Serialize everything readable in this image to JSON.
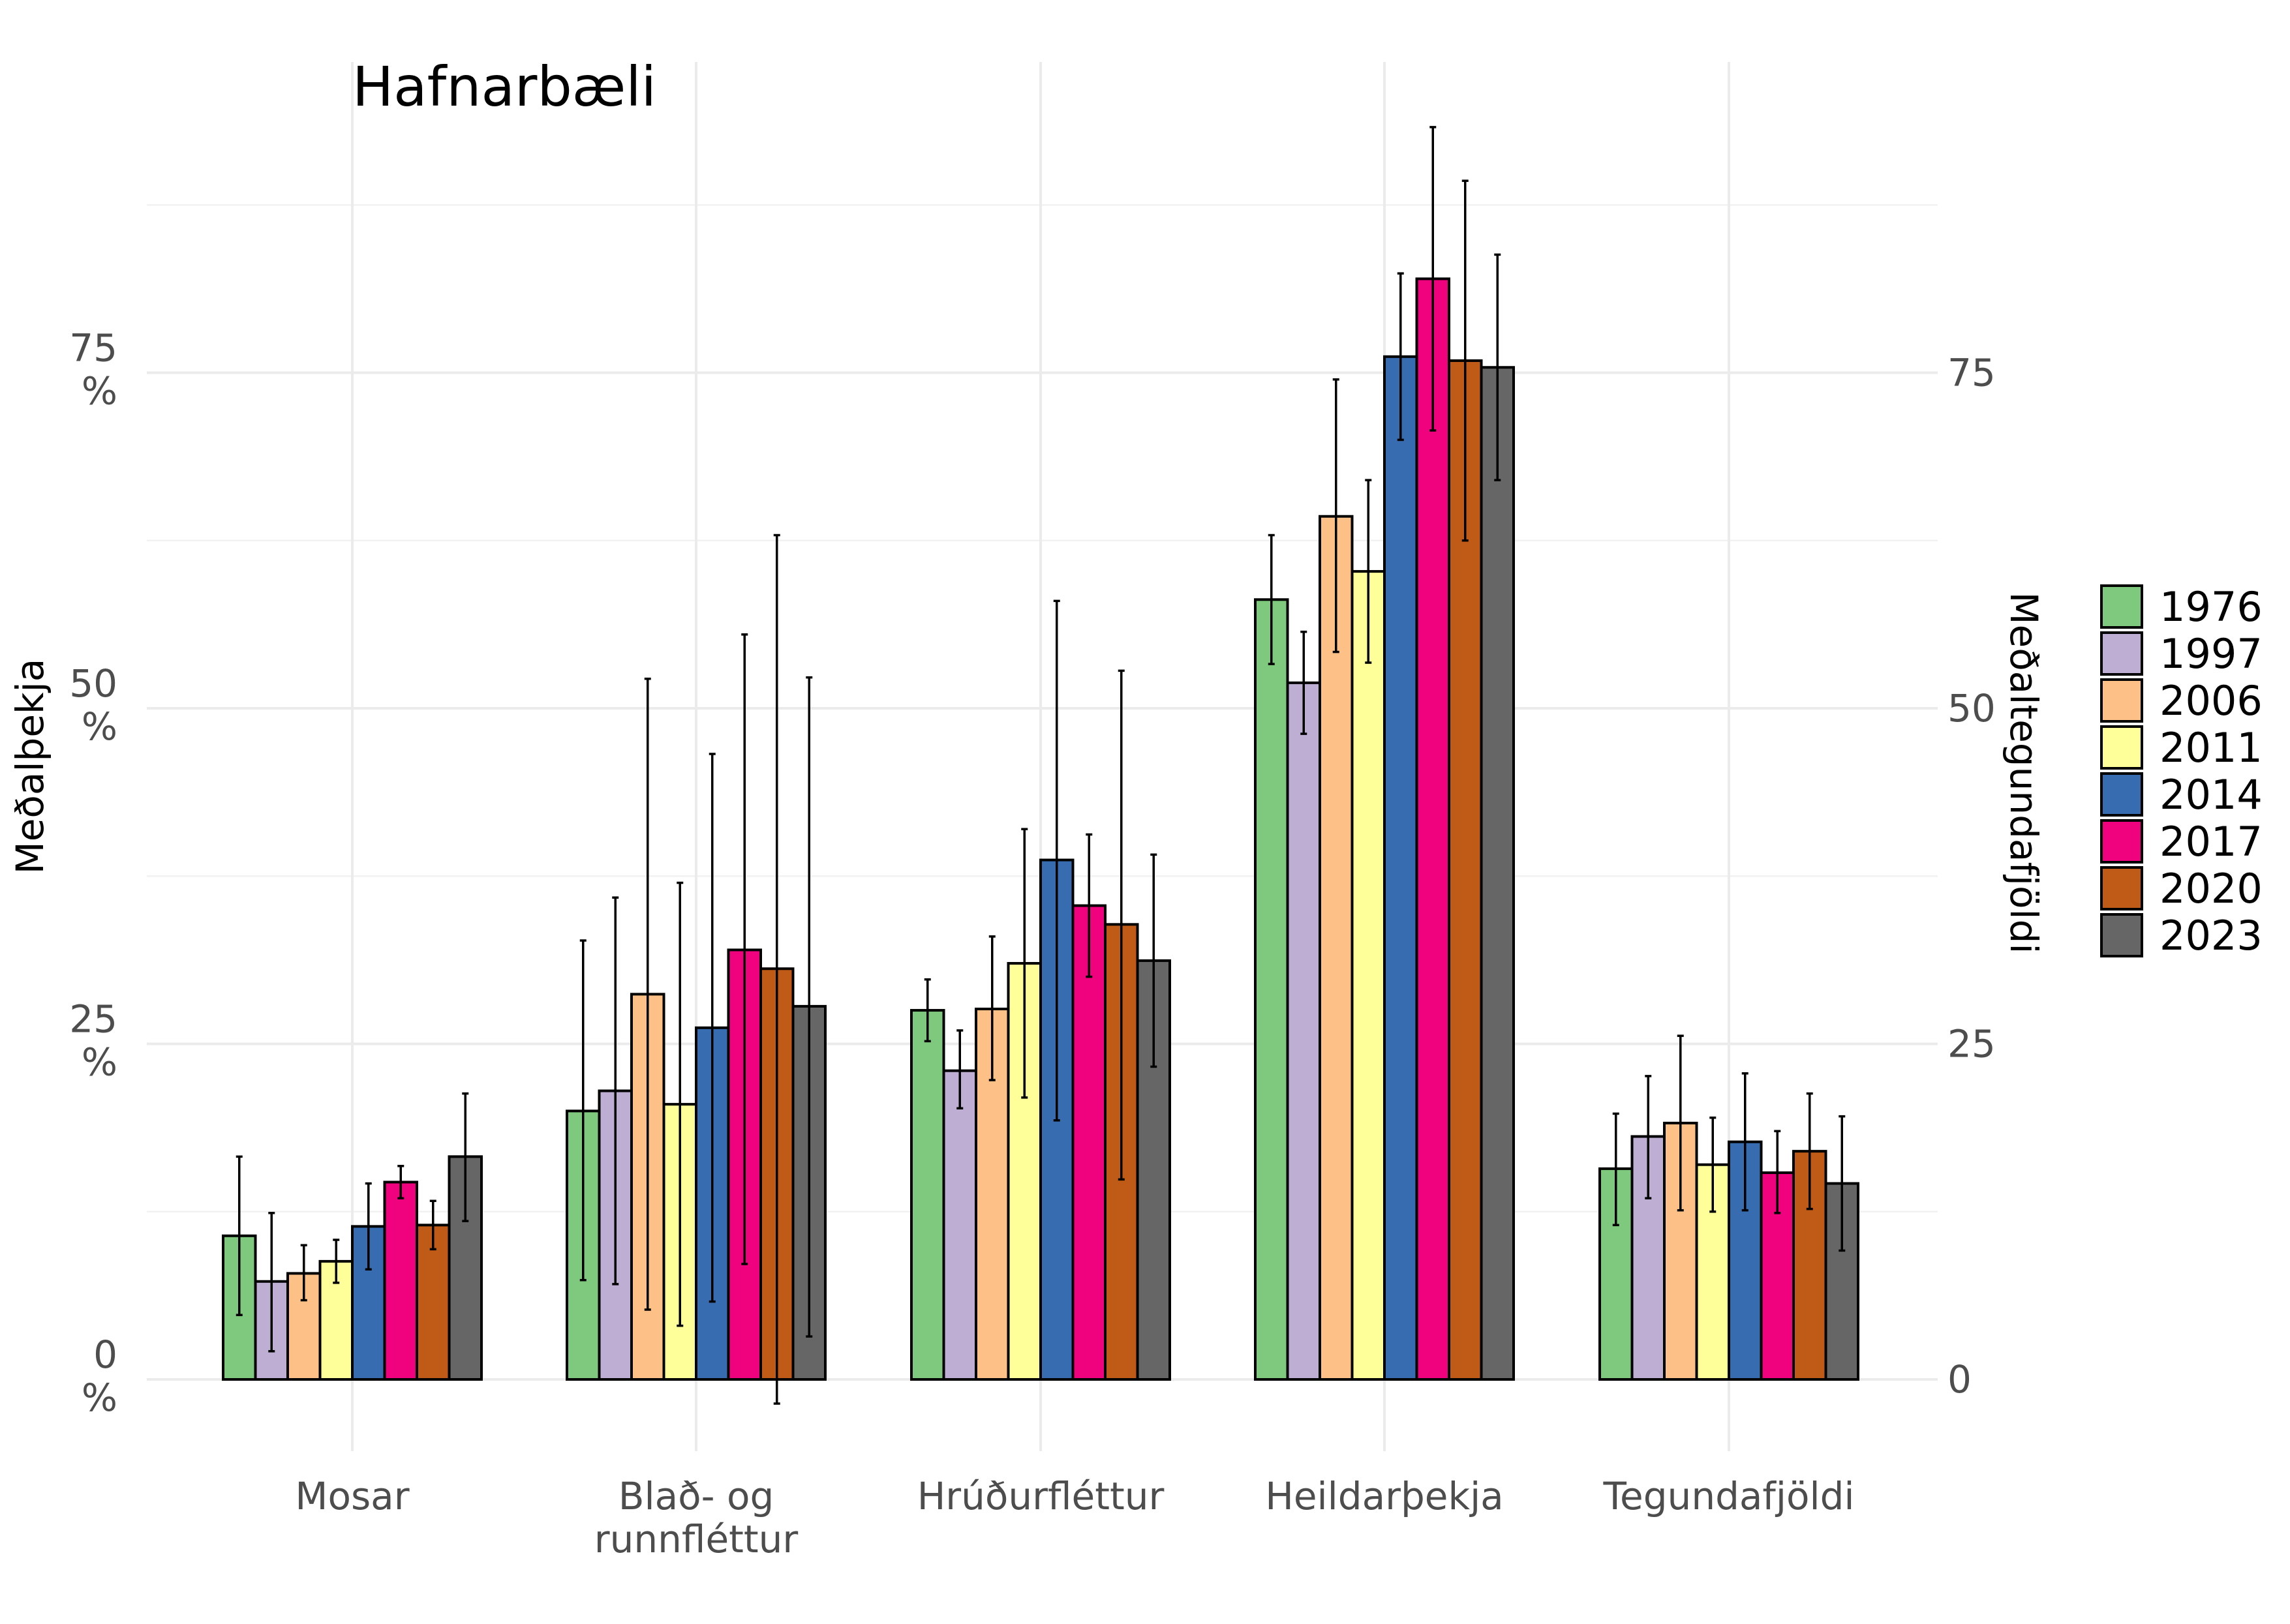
{
  "chart_data": {
    "type": "bar",
    "title": "Hafnarbæli",
    "ylabel": "Meðalþekja",
    "ylabel_right": "Meðaltegundafjöldi",
    "xlabel": "",
    "ylim": [
      0,
      92
    ],
    "y_ticks_left": [
      {
        "value": 0,
        "label": [
          "0",
          "%"
        ]
      },
      {
        "value": 25,
        "label": [
          "25",
          "%"
        ]
      },
      {
        "value": 50,
        "label": [
          "50",
          "%"
        ]
      },
      {
        "value": 75,
        "label": [
          "75",
          "%"
        ]
      }
    ],
    "y_ticks_right": [
      {
        "value": 0,
        "label": "0"
      },
      {
        "value": 25,
        "label": "25"
      },
      {
        "value": 50,
        "label": "50"
      },
      {
        "value": 75,
        "label": "75"
      }
    ],
    "categories": [
      [
        "Mosar"
      ],
      [
        "Blað- og",
        "runnfléttur"
      ],
      [
        "Hrúðurfléttur"
      ],
      [
        "Heildarþekja"
      ],
      [
        "Tegundafjöldi"
      ]
    ],
    "grid": true,
    "legend_position": "right",
    "series": [
      {
        "name": "1976",
        "color": "#7FC97F",
        "values": [
          10.7,
          20.0,
          27.5,
          58.1,
          15.7
        ],
        "err_low": [
          4.8,
          7.4,
          25.2,
          53.3,
          11.5
        ],
        "err_high": [
          16.6,
          32.7,
          29.8,
          62.9,
          19.8
        ]
      },
      {
        "name": "1997",
        "color": "#BEAED4",
        "values": [
          7.3,
          21.5,
          23.0,
          51.9,
          18.1
        ],
        "err_low": [
          2.1,
          7.1,
          20.2,
          48.1,
          13.5
        ],
        "err_high": [
          12.4,
          35.9,
          26.0,
          55.7,
          22.6
        ]
      },
      {
        "name": "2006",
        "color": "#FDC086",
        "values": [
          7.9,
          28.7,
          27.6,
          64.3,
          19.1
        ],
        "err_low": [
          5.9,
          5.2,
          22.3,
          54.2,
          12.6
        ],
        "err_high": [
          10.0,
          52.2,
          33.0,
          74.5,
          25.6
        ]
      },
      {
        "name": "2011",
        "color": "#FFFF99",
        "values": [
          8.8,
          20.5,
          31.0,
          60.2,
          16.0
        ],
        "err_low": [
          7.2,
          4.0,
          21.0,
          53.4,
          12.5
        ],
        "err_high": [
          10.4,
          37.0,
          41.0,
          67.0,
          19.5
        ]
      },
      {
        "name": "2014",
        "color": "#386CB0",
        "values": [
          11.4,
          26.2,
          38.7,
          76.2,
          17.7
        ],
        "err_low": [
          8.2,
          5.8,
          19.3,
          70.0,
          12.6
        ],
        "err_high": [
          14.6,
          46.6,
          58.0,
          82.4,
          22.8
        ]
      },
      {
        "name": "2017",
        "color": "#F0027F",
        "values": [
          14.7,
          32.0,
          35.3,
          82.0,
          15.4
        ],
        "err_low": [
          13.5,
          8.6,
          30.0,
          70.7,
          12.4
        ],
        "err_high": [
          15.9,
          55.5,
          40.6,
          93.3,
          18.5
        ]
      },
      {
        "name": "2020",
        "color": "#BF5B17",
        "values": [
          11.5,
          30.6,
          33.9,
          75.9,
          17.0
        ],
        "err_low": [
          9.7,
          -1.8,
          14.9,
          62.5,
          12.7
        ],
        "err_high": [
          13.3,
          62.9,
          52.8,
          89.3,
          21.3
        ]
      },
      {
        "name": "2023",
        "color": "#666666",
        "values": [
          16.6,
          27.8,
          31.2,
          75.4,
          14.6
        ],
        "err_low": [
          11.8,
          3.2,
          23.3,
          67.0,
          9.6
        ],
        "err_high": [
          21.3,
          52.3,
          39.1,
          83.8,
          19.6
        ]
      }
    ]
  }
}
